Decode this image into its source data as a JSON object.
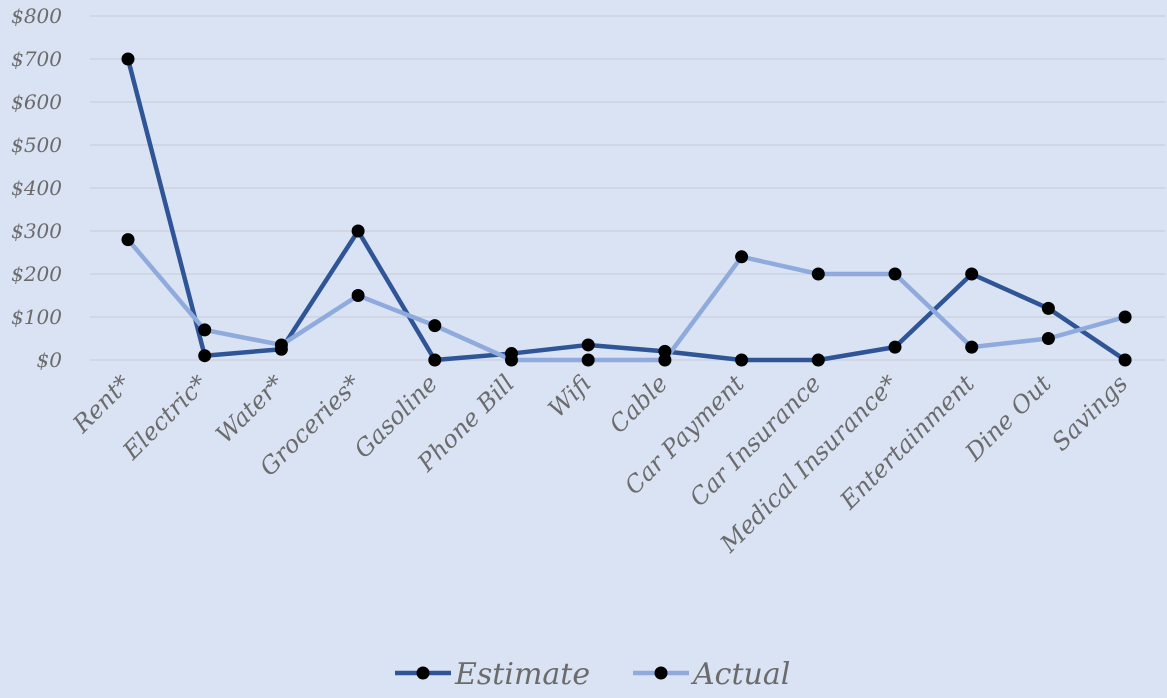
{
  "chart_data": {
    "type": "line",
    "categories": [
      "Rent*",
      "Electric*",
      "Water*",
      "Groceries*",
      "Gasoline",
      "Phone Bill",
      "Wifi",
      "Cable",
      "Car Payment",
      "Car Insurance",
      "Medical Insurance*",
      "Entertainment",
      "Dine Out",
      "Savings"
    ],
    "series": [
      {
        "name": "Estimate",
        "color": "#2f5597",
        "values": [
          700,
          10,
          25,
          300,
          0,
          15,
          35,
          20,
          0,
          0,
          30,
          200,
          120,
          0
        ]
      },
      {
        "name": "Actual",
        "color": "#8faadc",
        "values": [
          280,
          70,
          35,
          150,
          80,
          0,
          0,
          0,
          240,
          200,
          200,
          30,
          50,
          100
        ]
      }
    ],
    "y_ticks": [
      "$0",
      "$100",
      "$200",
      "$300",
      "$400",
      "$500",
      "$600",
      "$700",
      "$800"
    ],
    "ylim": [
      0,
      800
    ],
    "grid": true,
    "legend": "bottom",
    "marker_color": "#000000",
    "title": "",
    "xlabel": "",
    "ylabel": ""
  }
}
